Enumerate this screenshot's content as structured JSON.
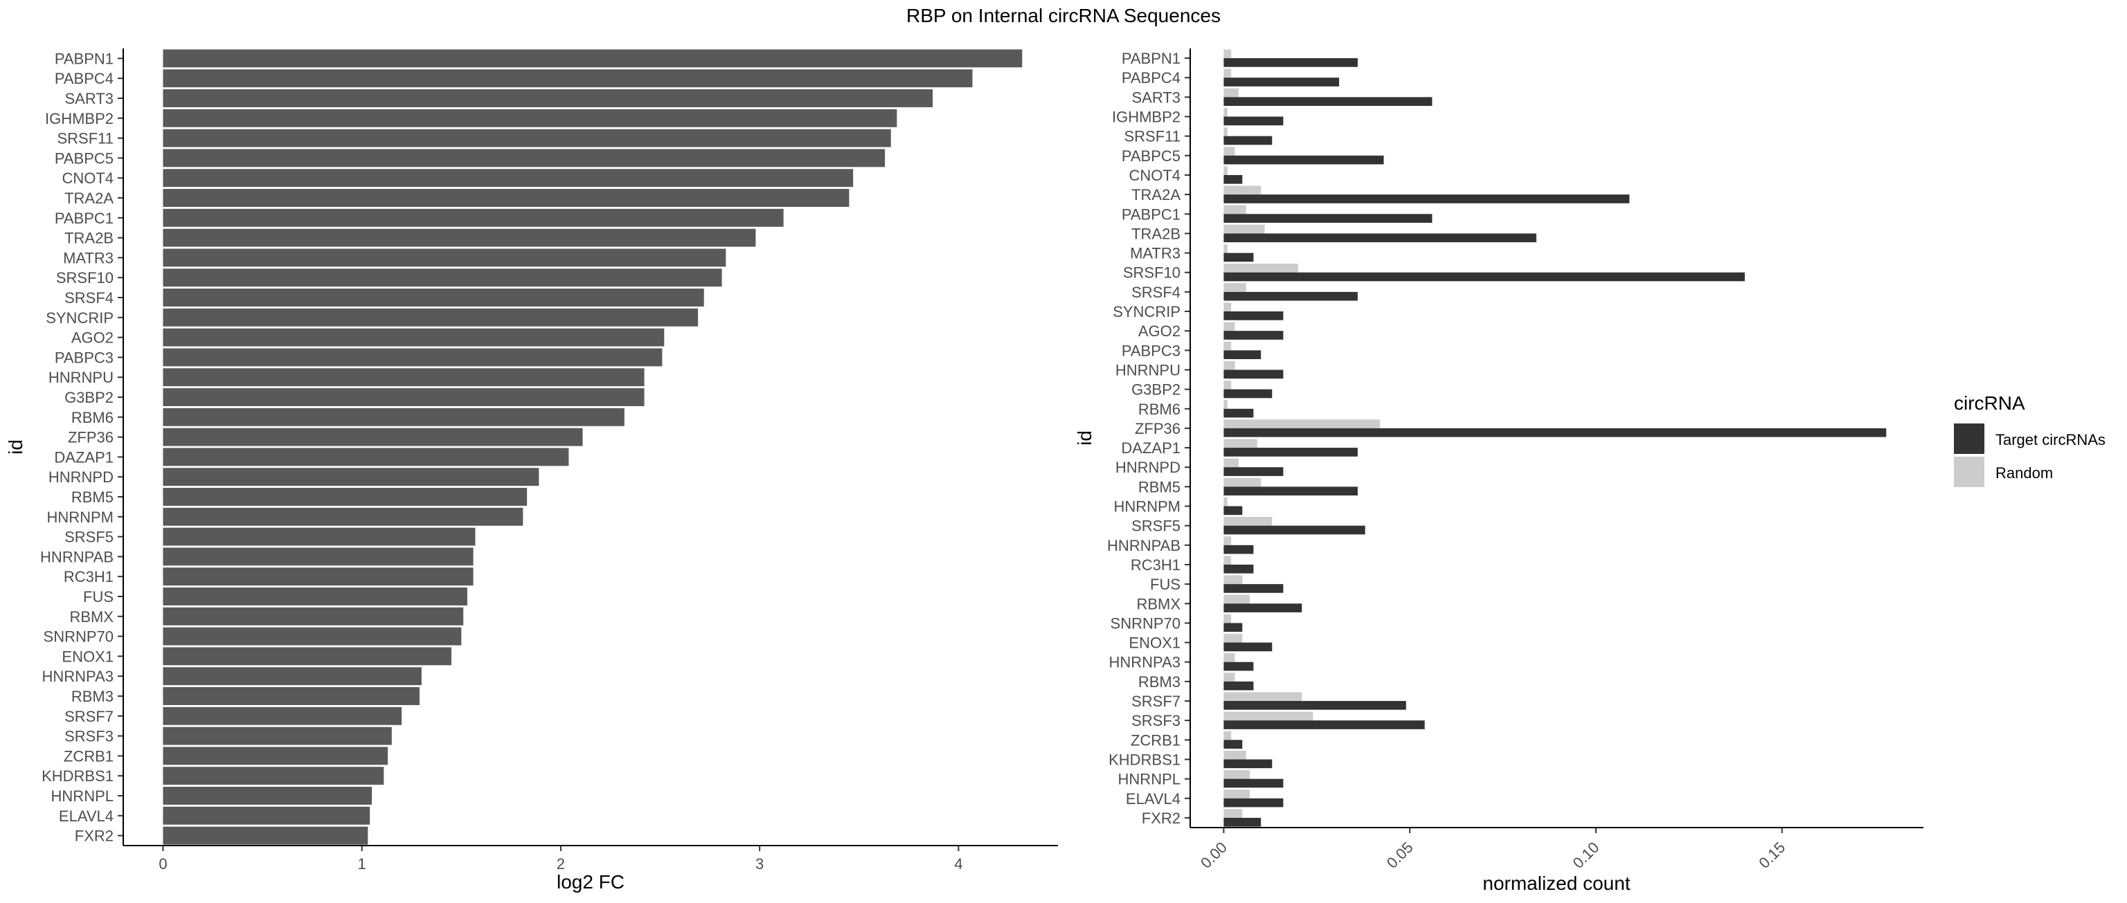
{
  "title": "RBP on Internal circRNA Sequences",
  "colors": {
    "left_bar": "#595959",
    "target": "#333333",
    "random": "#cccccc",
    "axis": "#000000",
    "tick_text": "#4d4d4d"
  },
  "chart_data": [
    {
      "type": "bar",
      "orientation": "horizontal",
      "xlabel": "log2 FC",
      "ylabel": "id",
      "xlim": [
        -0.2,
        4.5
      ],
      "xticks": [
        "0",
        "1",
        "2",
        "3",
        "4"
      ],
      "grid": false,
      "categories": [
        "PABPN1",
        "PABPC4",
        "SART3",
        "IGHMBP2",
        "SRSF11",
        "PABPC5",
        "CNOT4",
        "TRA2A",
        "PABPC1",
        "TRA2B",
        "MATR3",
        "SRSF10",
        "SRSF4",
        "SYNCRIP",
        "AGO2",
        "PABPC3",
        "HNRNPU",
        "G3BP2",
        "RBM6",
        "ZFP36",
        "DAZAP1",
        "HNRNPD",
        "RBM5",
        "HNRNPM",
        "SRSF5",
        "HNRNPAB",
        "RC3H1",
        "FUS",
        "RBMX",
        "SNRNP70",
        "ENOX1",
        "HNRNPA3",
        "RBM3",
        "SRSF7",
        "SRSF3",
        "ZCRB1",
        "KHDRBS1",
        "HNRNPL",
        "ELAVL4",
        "FXR2"
      ],
      "values": [
        4.32,
        4.07,
        3.87,
        3.69,
        3.66,
        3.63,
        3.47,
        3.45,
        3.12,
        2.98,
        2.83,
        2.81,
        2.72,
        2.69,
        2.52,
        2.51,
        2.42,
        2.42,
        2.32,
        2.11,
        2.04,
        1.89,
        1.83,
        1.81,
        1.57,
        1.56,
        1.56,
        1.53,
        1.51,
        1.5,
        1.45,
        1.3,
        1.29,
        1.2,
        1.15,
        1.13,
        1.11,
        1.05,
        1.04,
        1.03
      ]
    },
    {
      "type": "bar",
      "orientation": "horizontal",
      "grouped": true,
      "xlabel": "normalized count",
      "ylabel": "id",
      "xlim": [
        -0.009,
        0.188
      ],
      "xticks": [
        "0.00",
        "0.05",
        "0.10",
        "0.15"
      ],
      "grid": false,
      "legend": {
        "title": "circRNA",
        "position": "right"
      },
      "categories": [
        "PABPN1",
        "PABPC4",
        "SART3",
        "IGHMBP2",
        "SRSF11",
        "PABPC5",
        "CNOT4",
        "TRA2A",
        "PABPC1",
        "TRA2B",
        "MATR3",
        "SRSF10",
        "SRSF4",
        "SYNCRIP",
        "AGO2",
        "PABPC3",
        "HNRNPU",
        "G3BP2",
        "RBM6",
        "ZFP36",
        "DAZAP1",
        "HNRNPD",
        "RBM5",
        "HNRNPM",
        "SRSF5",
        "HNRNPAB",
        "RC3H1",
        "FUS",
        "RBMX",
        "SNRNP70",
        "ENOX1",
        "HNRNPA3",
        "RBM3",
        "SRSF7",
        "SRSF3",
        "ZCRB1",
        "KHDRBS1",
        "HNRNPL",
        "ELAVL4",
        "FXR2"
      ],
      "series": [
        {
          "name": "Target circRNAs",
          "values": [
            0.036,
            0.031,
            0.056,
            0.016,
            0.013,
            0.043,
            0.005,
            0.109,
            0.056,
            0.084,
            0.008,
            0.14,
            0.036,
            0.016,
            0.016,
            0.01,
            0.016,
            0.013,
            0.008,
            0.178,
            0.036,
            0.016,
            0.036,
            0.005,
            0.038,
            0.008,
            0.008,
            0.016,
            0.021,
            0.005,
            0.013,
            0.008,
            0.008,
            0.049,
            0.054,
            0.005,
            0.013,
            0.016,
            0.016,
            0.01
          ]
        },
        {
          "name": "Random",
          "values": [
            0.002,
            0.002,
            0.004,
            0.001,
            0.001,
            0.003,
            0.001,
            0.01,
            0.006,
            0.011,
            0.001,
            0.02,
            0.006,
            0.002,
            0.003,
            0.002,
            0.003,
            0.002,
            0.001,
            0.042,
            0.009,
            0.004,
            0.01,
            0.001,
            0.013,
            0.002,
            0.002,
            0.005,
            0.007,
            0.002,
            0.005,
            0.003,
            0.003,
            0.021,
            0.024,
            0.002,
            0.006,
            0.007,
            0.007,
            0.005
          ]
        }
      ]
    }
  ]
}
